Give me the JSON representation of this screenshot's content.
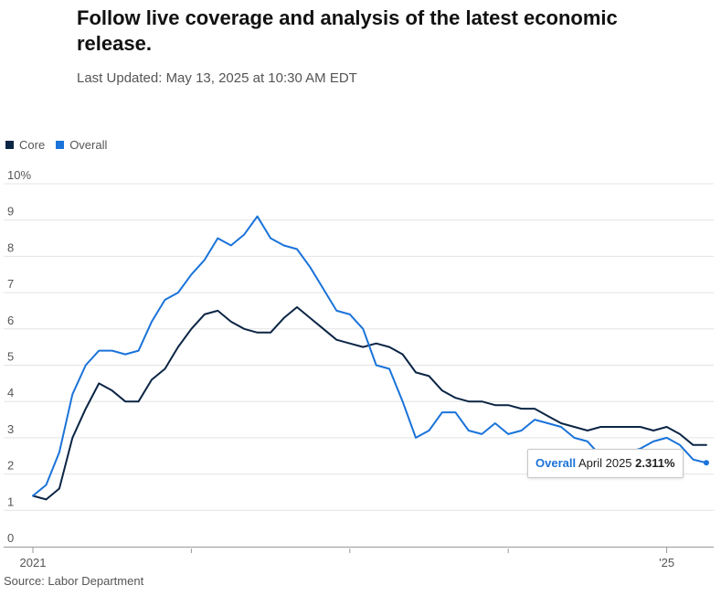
{
  "headline": "Follow live coverage and analysis of the latest economic release.",
  "last_updated": "Last Updated: May 13, 2025 at 10:30 AM EDT",
  "source": "Source: Labor Department",
  "colors": {
    "core": "#0b2545",
    "overall": "#1a73d9",
    "grid": "#e4e4e4"
  },
  "tooltip": {
    "series": "Overall",
    "date": "April 2025",
    "value": "2.311%"
  },
  "chart_data": {
    "type": "line",
    "title": "",
    "xlabel": "",
    "ylabel": "",
    "ylim": [
      0,
      10
    ],
    "y_ticks": [
      "0",
      "1",
      "2",
      "3",
      "4",
      "5",
      "6",
      "7",
      "8",
      "9",
      "10%"
    ],
    "x_tick_labels": [
      {
        "month_index": 0,
        "label": "2021"
      },
      {
        "month_index": 48,
        "label": "'25"
      }
    ],
    "x_minor_ticks": [
      12,
      24,
      36
    ],
    "grid": true,
    "legend": "top-left",
    "x_start": "2021-01",
    "x_end": "2025-04",
    "series": [
      {
        "name": "Core",
        "values": [
          1.4,
          1.3,
          1.6,
          3.0,
          3.8,
          4.5,
          4.3,
          4.0,
          4.0,
          4.6,
          4.9,
          5.5,
          6.0,
          6.4,
          6.5,
          6.2,
          6.0,
          5.9,
          5.9,
          6.3,
          6.6,
          6.3,
          6.0,
          5.7,
          5.6,
          5.5,
          5.6,
          5.5,
          5.3,
          4.8,
          4.7,
          4.3,
          4.1,
          4.0,
          4.0,
          3.9,
          3.9,
          3.8,
          3.8,
          3.6,
          3.4,
          3.3,
          3.2,
          3.3,
          3.3,
          3.3,
          3.3,
          3.2,
          3.3,
          3.1,
          2.8,
          2.8
        ]
      },
      {
        "name": "Overall",
        "values": [
          1.4,
          1.7,
          2.6,
          4.2,
          5.0,
          5.4,
          5.4,
          5.3,
          5.4,
          6.2,
          6.8,
          7.0,
          7.5,
          7.9,
          8.5,
          8.3,
          8.6,
          9.1,
          8.5,
          8.3,
          8.2,
          7.7,
          7.1,
          6.5,
          6.4,
          6.0,
          5.0,
          4.9,
          4.0,
          3.0,
          3.2,
          3.7,
          3.7,
          3.2,
          3.1,
          3.4,
          3.1,
          3.2,
          3.5,
          3.4,
          3.3,
          3.0,
          2.9,
          2.5,
          2.4,
          2.6,
          2.7,
          2.9,
          3.0,
          2.8,
          2.4,
          2.311
        ]
      }
    ]
  }
}
